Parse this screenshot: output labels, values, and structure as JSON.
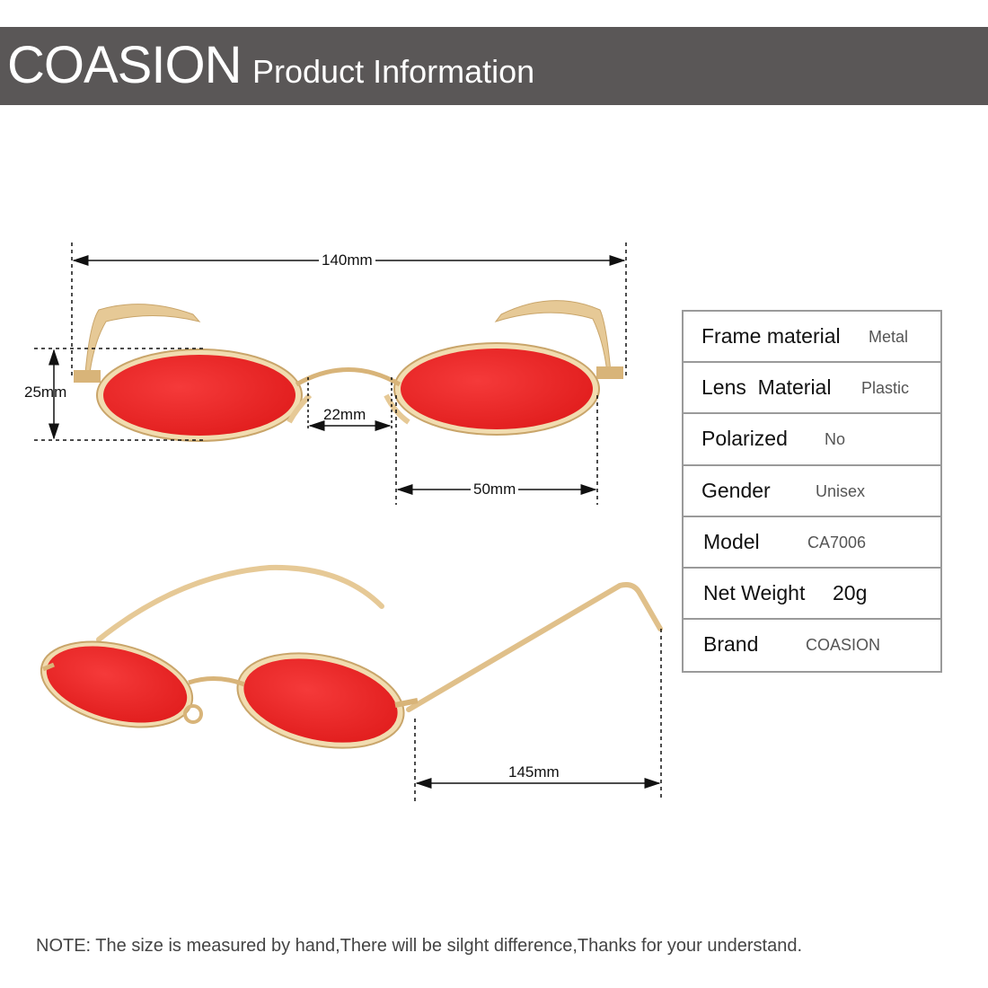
{
  "header": {
    "brand": "COASION",
    "subtitle": "Product Information"
  },
  "dimensions": {
    "total_width": "140mm",
    "lens_height": "25mm",
    "bridge": "22mm",
    "lens_width": "50mm",
    "temple_length": "145mm"
  },
  "specs": [
    {
      "label": "Frame material",
      "value": "Metal"
    },
    {
      "label": "Lens  Material",
      "value": "Plastic"
    },
    {
      "label": "Polarized",
      "value": "No"
    },
    {
      "label": "Gender",
      "value": "Unisex"
    },
    {
      "label": "Model",
      "value": "CA7006"
    },
    {
      "label": "Net Weight",
      "value": "20g"
    },
    {
      "label": "Brand",
      "value": "COASION"
    }
  ],
  "note": "NOTE: The size is measured by hand,There will be silght difference,Thanks for your understand.",
  "colors": {
    "header_bg": "#5a5757",
    "lens": "#f02828",
    "frame": "#d8b479"
  }
}
